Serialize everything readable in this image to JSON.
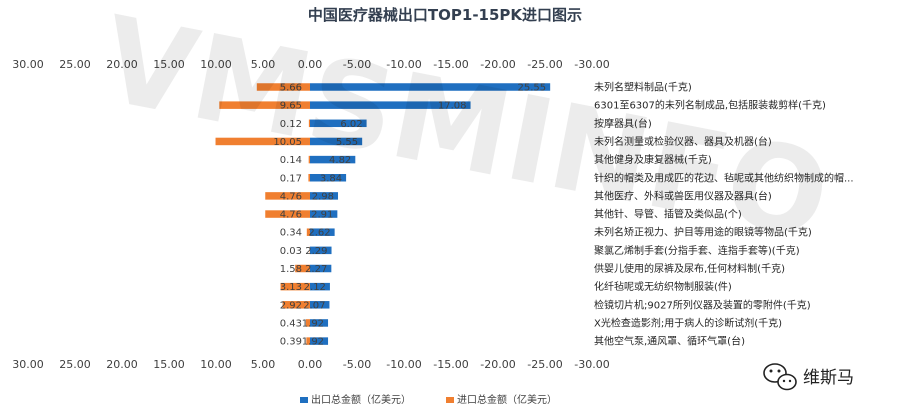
{
  "chart_data": {
    "type": "bar",
    "orientation": "horizontal",
    "title": "中国医疗器械出口TOP1-15PK进口图示",
    "x_axis_reversed": true,
    "xlim": [
      -30,
      30
    ],
    "xticks": [
      "30.00",
      "25.00",
      "20.00",
      "15.00",
      "10.00",
      "5.00",
      "0.00",
      "-5.00",
      "-10.00",
      "-15.00",
      "-20.00",
      "-25.00",
      "-30.00"
    ],
    "xtick_values": [
      30,
      25,
      20,
      15,
      10,
      5,
      0,
      -5,
      -10,
      -15,
      -20,
      -25,
      -30
    ],
    "categories": [
      "未列名塑料制品(千克)",
      "6301至6307的未列名制成品,包括服装裁剪样(千克)",
      "按摩器具(台)",
      "未列名测量或检验仪器、器具及机器(台)",
      "其他健身及康复器械(千克)",
      "针织的帽类及用成匹的花边、毡呢或其他纺织物制成的帽...",
      "其他医疗、外科或兽医用仪器及器具(台)",
      "其他针、导管、插管及类似品(个)",
      "未列名矫正视力、护目等用途的眼镜等物品(千克)",
      "聚氯乙烯制手套(分指手套、连指手套等)(千克)",
      "供婴儿使用的尿裤及尿布,任何材料制(千克)",
      "化纤毡呢或无纺织物制服装(件)",
      "检镜切片机;9027所列仪器及装置的零附件(千克)",
      "X光检查造影剂;用于病人的诊断试剂(千克)",
      "其他空气泵,通风罩、循环气罩(台)"
    ],
    "series": [
      {
        "name": "出口总金额（亿美元）",
        "color": "#1f6fc0",
        "values": [
          25.55,
          17.08,
          6.02,
          5.55,
          4.82,
          3.84,
          2.98,
          2.91,
          2.62,
          2.29,
          2.27,
          2.12,
          2.07,
          1.92,
          1.92
        ],
        "labels": [
          "25.55",
          "17.08",
          "6.02",
          "5.55",
          "4.82",
          "3.84",
          "2.98",
          "2.91",
          "2.62",
          "2.29",
          "2.27",
          "2.12",
          "2.07",
          "1.92",
          "1.92"
        ]
      },
      {
        "name": "进口总金额（亿美元）",
        "color": "#f07f30",
        "values": [
          5.66,
          9.65,
          0.12,
          10.05,
          0.14,
          0.17,
          4.76,
          4.76,
          0.34,
          0.03,
          1.58,
          3.13,
          2.92,
          0.43,
          0.39
        ],
        "labels": [
          "5.66",
          "9.65",
          "0.12",
          "10.05",
          "0.14",
          "0.17",
          "4.76",
          "4.76",
          "0.34",
          "0.03",
          "1.58",
          "3.13",
          "2.92",
          "0.43",
          "0.39"
        ]
      }
    ],
    "legend_position": "bottom"
  },
  "watermark": "VMSMINFO",
  "brand": {
    "icon": "wechat-icon",
    "name": "维斯马"
  }
}
